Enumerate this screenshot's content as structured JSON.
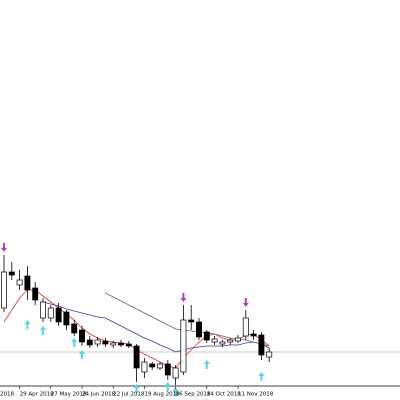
{
  "chart_data": {
    "type": "candlestick",
    "edge_label": "2018",
    "categories": [
      null,
      null,
      "29 Apr 2018",
      null,
      null,
      null,
      "27 May 2018",
      null,
      null,
      null,
      "24 Jun 2018",
      null,
      null,
      null,
      "22 Jul 2018",
      null,
      null,
      null,
      "19 Aug 2018",
      null,
      null,
      null,
      "16 Sep 2018",
      null,
      null,
      null,
      "14 Oct 2018",
      null,
      null,
      null,
      "11 Nov 2018",
      null,
      null,
      null,
      null
    ],
    "open": [
      92,
      128,
      115,
      124,
      112,
      82,
      82,
      92,
      88,
      76,
      70,
      60,
      56,
      59,
      55,
      57,
      56,
      54,
      28,
      36,
      32,
      36,
      22,
      28,
      80,
      78,
      68,
      58,
      56,
      58,
      59,
      64,
      66,
      65,
      43
    ],
    "high": [
      145,
      138,
      130,
      134,
      118,
      102,
      95,
      97,
      90,
      80,
      74,
      64,
      63,
      62,
      59,
      60,
      59,
      56,
      42,
      38,
      38,
      40,
      35,
      95,
      95,
      82,
      70,
      64,
      60,
      62,
      65,
      90,
      70,
      68,
      52
    ],
    "low": [
      88,
      120,
      110,
      100,
      95,
      78,
      78,
      74,
      70,
      64,
      54,
      52,
      53,
      53,
      52,
      53,
      52,
      18,
      22,
      30,
      30,
      20,
      15,
      25,
      70,
      60,
      57,
      55,
      53,
      55,
      57,
      60,
      60,
      40,
      38
    ],
    "close": [
      128,
      125,
      120,
      110,
      100,
      98,
      92,
      78,
      75,
      67,
      58,
      55,
      60,
      56,
      57,
      55,
      54,
      32,
      38,
      33,
      36,
      25,
      32,
      80,
      78,
      63,
      60,
      61,
      58,
      60,
      62,
      82,
      64,
      45,
      48
    ],
    "series": [
      {
        "color": "#e03030",
        "values": [
          78,
          90,
          102,
          110,
          110,
          104,
          98,
          92,
          86,
          80,
          72,
          66,
          62,
          59,
          58,
          57,
          56,
          50,
          46,
          42,
          38,
          34,
          32,
          42,
          50,
          58,
          64,
          66,
          62,
          60,
          60,
          65,
          66,
          60,
          54
        ]
      },
      {
        "color": "#3a3a9a",
        "values": [
          null,
          null,
          null,
          null,
          null,
          98,
          96,
          94,
          91,
          89,
          87,
          85,
          83,
          82,
          78,
          74,
          70,
          66,
          62,
          59,
          55,
          52,
          48,
          50,
          52,
          53,
          54,
          54,
          54,
          55,
          55,
          57,
          58,
          56,
          52
        ]
      },
      {
        "color": "#666666",
        "values": [
          null,
          null,
          null,
          null,
          null,
          null,
          null,
          null,
          null,
          null,
          null,
          null,
          null,
          107,
          103,
          99,
          95,
          91,
          87,
          83,
          79,
          75,
          71,
          70,
          69,
          68,
          67,
          66,
          64,
          62,
          61,
          60,
          58,
          56,
          54
        ]
      }
    ],
    "arrows_down": {
      "color": "#b040c0",
      "values": [
        148,
        null,
        null,
        null,
        null,
        null,
        null,
        null,
        null,
        null,
        null,
        null,
        null,
        null,
        null,
        null,
        null,
        null,
        null,
        null,
        null,
        null,
        null,
        98,
        null,
        null,
        null,
        null,
        null,
        null,
        null,
        93,
        null,
        null,
        null
      ]
    },
    "arrows_up": {
      "color": "#50d8e8",
      "values": [
        null,
        null,
        null,
        80,
        null,
        74,
        null,
        null,
        null,
        62,
        50,
        null,
        null,
        null,
        null,
        null,
        null,
        16,
        null,
        null,
        null,
        18,
        13,
        null,
        null,
        null,
        40,
        null,
        null,
        null,
        null,
        null,
        null,
        28,
        null
      ]
    },
    "price_line": 48,
    "ylim": [
      0,
      400
    ]
  }
}
